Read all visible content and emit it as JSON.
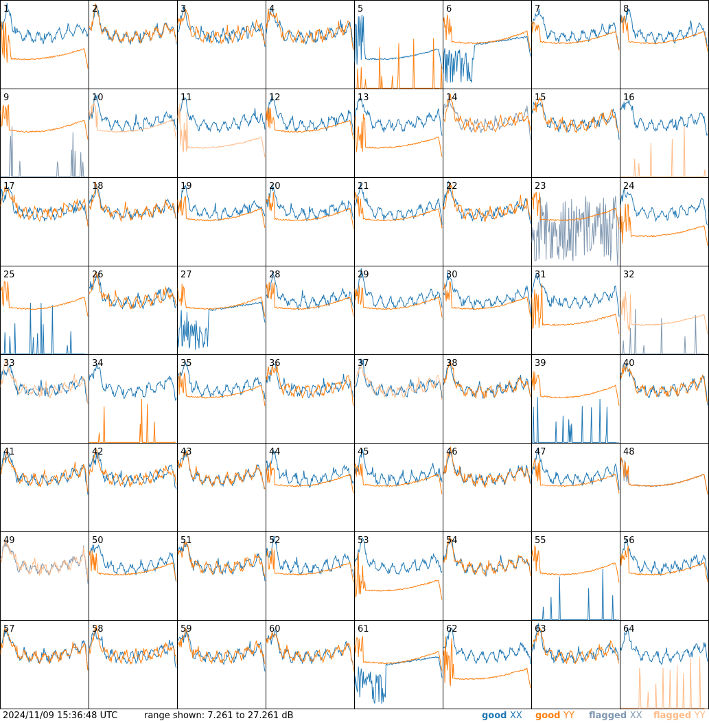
{
  "footer": {
    "timestamp": "2024/11/09 15:36:48 UTC",
    "range_text": "range shown: 7.261 to 27.261 dB"
  },
  "legend": {
    "good_xx": {
      "word": "good",
      "pol": "XX",
      "color": "#1f77b4"
    },
    "good_yy": {
      "word": "good",
      "pol": "YY",
      "color": "#ff7f0e"
    },
    "flagged_xx": {
      "word": "flagged",
      "pol": "XX",
      "color": "#7f97b0"
    },
    "flagged_yy": {
      "word": "flagged",
      "pol": "YY",
      "color": "#ffbb88"
    }
  },
  "chart_data": {
    "type": "line",
    "layout": "small-multiples 8x8",
    "ylim": [
      7.261,
      27.261
    ],
    "panels": [
      {
        "label": "1",
        "xx": "good",
        "yy": "good",
        "xx_shape": "ripple",
        "yy_shape": "lowdip"
      },
      {
        "label": "2",
        "xx": "good",
        "yy": "good",
        "xx_shape": "ripple",
        "yy_shape": "ripple"
      },
      {
        "label": "3",
        "xx": "good",
        "yy": "good",
        "xx_shape": "ripple",
        "yy_shape": "ripple"
      },
      {
        "label": "4",
        "xx": "good",
        "yy": "good",
        "xx_shape": "ripple",
        "yy_shape": "ripple"
      },
      {
        "label": "5",
        "xx": "good",
        "yy": "good",
        "xx_shape": "lowdip",
        "yy_shape": "spikes"
      },
      {
        "label": "6",
        "xx": "good",
        "yy": "good",
        "xx_shape": "broken",
        "yy_shape": "smooth"
      },
      {
        "label": "7",
        "xx": "good",
        "yy": "good",
        "xx_shape": "ripple",
        "yy_shape": "smooth"
      },
      {
        "label": "8",
        "xx": "good",
        "yy": "good",
        "xx_shape": "ripple",
        "yy_shape": "smooth"
      },
      {
        "label": "9",
        "xx": "flagged",
        "yy": "good",
        "xx_shape": "spikes",
        "yy_shape": "smooth"
      },
      {
        "label": "10",
        "xx": "good",
        "yy": "flagged",
        "xx_shape": "ripple",
        "yy_shape": "smooth"
      },
      {
        "label": "11",
        "xx": "good",
        "yy": "flagged",
        "xx_shape": "ripple",
        "yy_shape": "lowdip"
      },
      {
        "label": "12",
        "xx": "good",
        "yy": "good",
        "xx_shape": "ripple",
        "yy_shape": "smooth"
      },
      {
        "label": "13",
        "xx": "good",
        "yy": "good",
        "xx_shape": "ripple",
        "yy_shape": "lowdip"
      },
      {
        "label": "14",
        "xx": "flagged",
        "yy": "good",
        "xx_shape": "ripple",
        "yy_shape": "ripple"
      },
      {
        "label": "15",
        "xx": "good",
        "yy": "good",
        "xx_shape": "ripple",
        "yy_shape": "ripple"
      },
      {
        "label": "16",
        "xx": "good",
        "yy": "flagged",
        "xx_shape": "ripple",
        "yy_shape": "spikes"
      },
      {
        "label": "17",
        "xx": "good",
        "yy": "good",
        "xx_shape": "ripple",
        "yy_shape": "ripple"
      },
      {
        "label": "18",
        "xx": "good",
        "yy": "good",
        "xx_shape": "ripple",
        "yy_shape": "ripple"
      },
      {
        "label": "19",
        "xx": "good",
        "yy": "good",
        "xx_shape": "ripple",
        "yy_shape": "smooth"
      },
      {
        "label": "20",
        "xx": "good",
        "yy": "good",
        "xx_shape": "ripple",
        "yy_shape": "smooth"
      },
      {
        "label": "21",
        "xx": "good",
        "yy": "good",
        "xx_shape": "ripple",
        "yy_shape": "smooth"
      },
      {
        "label": "22",
        "xx": "good",
        "yy": "good",
        "xx_shape": "ripple",
        "yy_shape": "ripple"
      },
      {
        "label": "23",
        "xx": "flagged",
        "yy": "good",
        "xx_shape": "noise",
        "yy_shape": "smooth"
      },
      {
        "label": "24",
        "xx": "good",
        "yy": "good",
        "xx_shape": "ripple",
        "yy_shape": "lowdip"
      },
      {
        "label": "25",
        "xx": "good",
        "yy": "good",
        "xx_shape": "spikes",
        "yy_shape": "smooth"
      },
      {
        "label": "26",
        "xx": "good",
        "yy": "good",
        "xx_shape": "ripple",
        "yy_shape": "ripple"
      },
      {
        "label": "27",
        "xx": "good",
        "yy": "good",
        "xx_shape": "broken",
        "yy_shape": "smooth"
      },
      {
        "label": "28",
        "xx": "good",
        "yy": "good",
        "xx_shape": "ripple",
        "yy_shape": "smooth"
      },
      {
        "label": "29",
        "xx": "good",
        "yy": "good",
        "xx_shape": "ripple",
        "yy_shape": "smooth"
      },
      {
        "label": "30",
        "xx": "good",
        "yy": "good",
        "xx_shape": "ripple",
        "yy_shape": "smooth"
      },
      {
        "label": "31",
        "xx": "good",
        "yy": "good",
        "xx_shape": "ripple",
        "yy_shape": "lowdip"
      },
      {
        "label": "32",
        "xx": "flagged",
        "yy": "flagged",
        "xx_shape": "spikes",
        "yy_shape": "lowdip"
      },
      {
        "label": "33",
        "xx": "good",
        "yy": "flagged",
        "xx_shape": "ripple",
        "yy_shape": "ripple"
      },
      {
        "label": "34",
        "xx": "good",
        "yy": "good",
        "xx_shape": "ripple",
        "yy_shape": "spikes"
      },
      {
        "label": "35",
        "xx": "good",
        "yy": "good",
        "xx_shape": "ripple",
        "yy_shape": "smooth"
      },
      {
        "label": "36",
        "xx": "good",
        "yy": "good",
        "xx_shape": "ripple",
        "yy_shape": "ripple"
      },
      {
        "label": "37",
        "xx": "good",
        "yy": "flagged",
        "xx_shape": "ripple",
        "yy_shape": "ripple"
      },
      {
        "label": "38",
        "xx": "good",
        "yy": "good",
        "xx_shape": "ripple",
        "yy_shape": "ripple"
      },
      {
        "label": "39",
        "xx": "good",
        "yy": "good",
        "xx_shape": "spikes",
        "yy_shape": "smooth"
      },
      {
        "label": "40",
        "xx": "good",
        "yy": "good",
        "xx_shape": "ripple",
        "yy_shape": "ripple"
      },
      {
        "label": "41",
        "xx": "good",
        "yy": "good",
        "xx_shape": "ripple",
        "yy_shape": "ripple"
      },
      {
        "label": "42",
        "xx": "good",
        "yy": "good",
        "xx_shape": "ripple",
        "yy_shape": "ripple"
      },
      {
        "label": "43",
        "xx": "good",
        "yy": "good",
        "xx_shape": "ripple",
        "yy_shape": "ripple"
      },
      {
        "label": "44",
        "xx": "good",
        "yy": "good",
        "xx_shape": "ripple",
        "yy_shape": "smooth"
      },
      {
        "label": "45",
        "xx": "good",
        "yy": "good",
        "xx_shape": "ripple",
        "yy_shape": "smooth"
      },
      {
        "label": "46",
        "xx": "good",
        "yy": "good",
        "xx_shape": "ripple",
        "yy_shape": "ripple"
      },
      {
        "label": "47",
        "xx": "good",
        "yy": "good",
        "xx_shape": "ripple",
        "yy_shape": "smooth"
      },
      {
        "label": "48",
        "xx": "flagged",
        "yy": "good",
        "xx_shape": "smooth",
        "yy_shape": "smooth"
      },
      {
        "label": "49",
        "xx": "flagged",
        "yy": "flagged",
        "xx_shape": "ripple",
        "yy_shape": "ripple"
      },
      {
        "label": "50",
        "xx": "good",
        "yy": "good",
        "xx_shape": "ripple",
        "yy_shape": "smooth"
      },
      {
        "label": "51",
        "xx": "good",
        "yy": "good",
        "xx_shape": "ripple",
        "yy_shape": "ripple"
      },
      {
        "label": "52",
        "xx": "good",
        "yy": "good",
        "xx_shape": "ripple",
        "yy_shape": "smooth"
      },
      {
        "label": "53",
        "xx": "good",
        "yy": "good",
        "xx_shape": "ripple",
        "yy_shape": "lowdip"
      },
      {
        "label": "54",
        "xx": "good",
        "yy": "good",
        "xx_shape": "ripple",
        "yy_shape": "ripple"
      },
      {
        "label": "55",
        "xx": "good",
        "yy": "good",
        "xx_shape": "spikes",
        "yy_shape": "smooth"
      },
      {
        "label": "56",
        "xx": "good",
        "yy": "good",
        "xx_shape": "ripple",
        "yy_shape": "smooth"
      },
      {
        "label": "57",
        "xx": "good",
        "yy": "good",
        "xx_shape": "ripple",
        "yy_shape": "ripple"
      },
      {
        "label": "58",
        "xx": "good",
        "yy": "good",
        "xx_shape": "ripple",
        "yy_shape": "ripple"
      },
      {
        "label": "59",
        "xx": "good",
        "yy": "good",
        "xx_shape": "ripple",
        "yy_shape": "ripple"
      },
      {
        "label": "60",
        "xx": "good",
        "yy": "good",
        "xx_shape": "ripple",
        "yy_shape": "ripple"
      },
      {
        "label": "61",
        "xx": "good",
        "yy": "good",
        "xx_shape": "broken",
        "yy_shape": "smooth"
      },
      {
        "label": "62",
        "xx": "good",
        "yy": "good",
        "xx_shape": "ripple",
        "yy_shape": "lowdip"
      },
      {
        "label": "63",
        "xx": "good",
        "yy": "good",
        "xx_shape": "ripple",
        "yy_shape": "ripple"
      },
      {
        "label": "64",
        "xx": "good",
        "yy": "flagged",
        "xx_shape": "ripple",
        "yy_shape": "spikes"
      }
    ]
  }
}
